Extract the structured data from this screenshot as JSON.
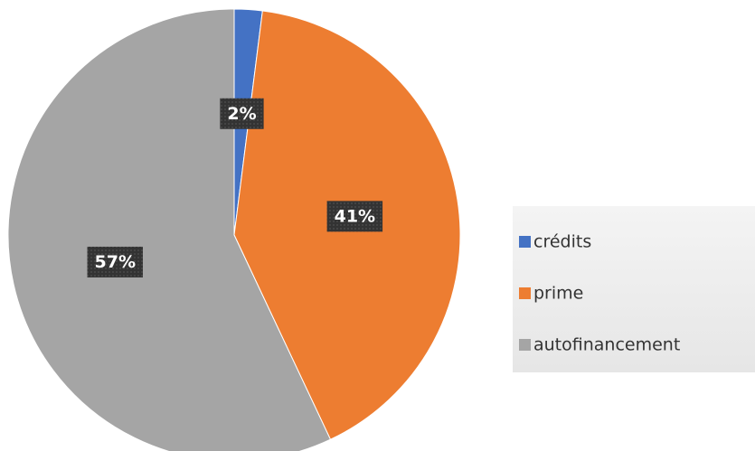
{
  "chart_data": {
    "type": "pie",
    "categories": [
      "crédits",
      "prime",
      "autofinancement"
    ],
    "values": [
      2,
      41,
      57
    ],
    "value_labels": [
      "2%",
      "41%",
      "57%"
    ],
    "colors": [
      "#4472c4",
      "#ed7d31",
      "#a5a5a5"
    ],
    "legend": "right"
  }
}
